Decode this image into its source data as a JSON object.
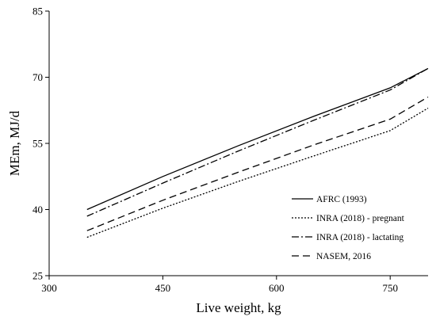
{
  "chart_data": {
    "type": "line",
    "xlabel": "Live weight, kg",
    "ylabel": "MEm, MJ/d",
    "xlim": [
      300,
      800
    ],
    "ylim": [
      25,
      85
    ],
    "xticks": [
      300,
      450,
      600,
      750
    ],
    "yticks": [
      25,
      40,
      55,
      70,
      85
    ],
    "x_tick_labels": [
      "300",
      "450",
      "600",
      "750"
    ],
    "y_tick_labels": [
      "25",
      "40",
      "55",
      "70",
      "85"
    ],
    "grid": false,
    "legend_position": "bottom-right",
    "series": [
      {
        "name": "AFRC (1993)",
        "dash": "solid",
        "color": "#000000",
        "x": [
          350,
          450,
          550,
          650,
          750,
          800
        ],
        "y": [
          40.0,
          47.5,
          54.5,
          61.2,
          67.6,
          72.0
        ]
      },
      {
        "name": "INRA (2018) - pregnant",
        "dash": "dotted",
        "color": "#000000",
        "x": [
          350,
          450,
          550,
          650,
          750,
          800
        ],
        "y": [
          33.7,
          40.3,
          46.4,
          52.2,
          57.9,
          63.0
        ]
      },
      {
        "name": "INRA (2018) - lactating",
        "dash": "dash-dot",
        "color": "#000000",
        "x": [
          350,
          450,
          550,
          650,
          750,
          800
        ],
        "y": [
          38.5,
          46.0,
          53.3,
          60.3,
          67.1,
          72.0
        ]
      },
      {
        "name": "NASEM, 2016",
        "dash": "dashed",
        "color": "#000000",
        "x": [
          350,
          450,
          550,
          650,
          750,
          800
        ],
        "y": [
          35.2,
          42.1,
          48.5,
          54.7,
          60.5,
          65.5
        ]
      }
    ]
  }
}
